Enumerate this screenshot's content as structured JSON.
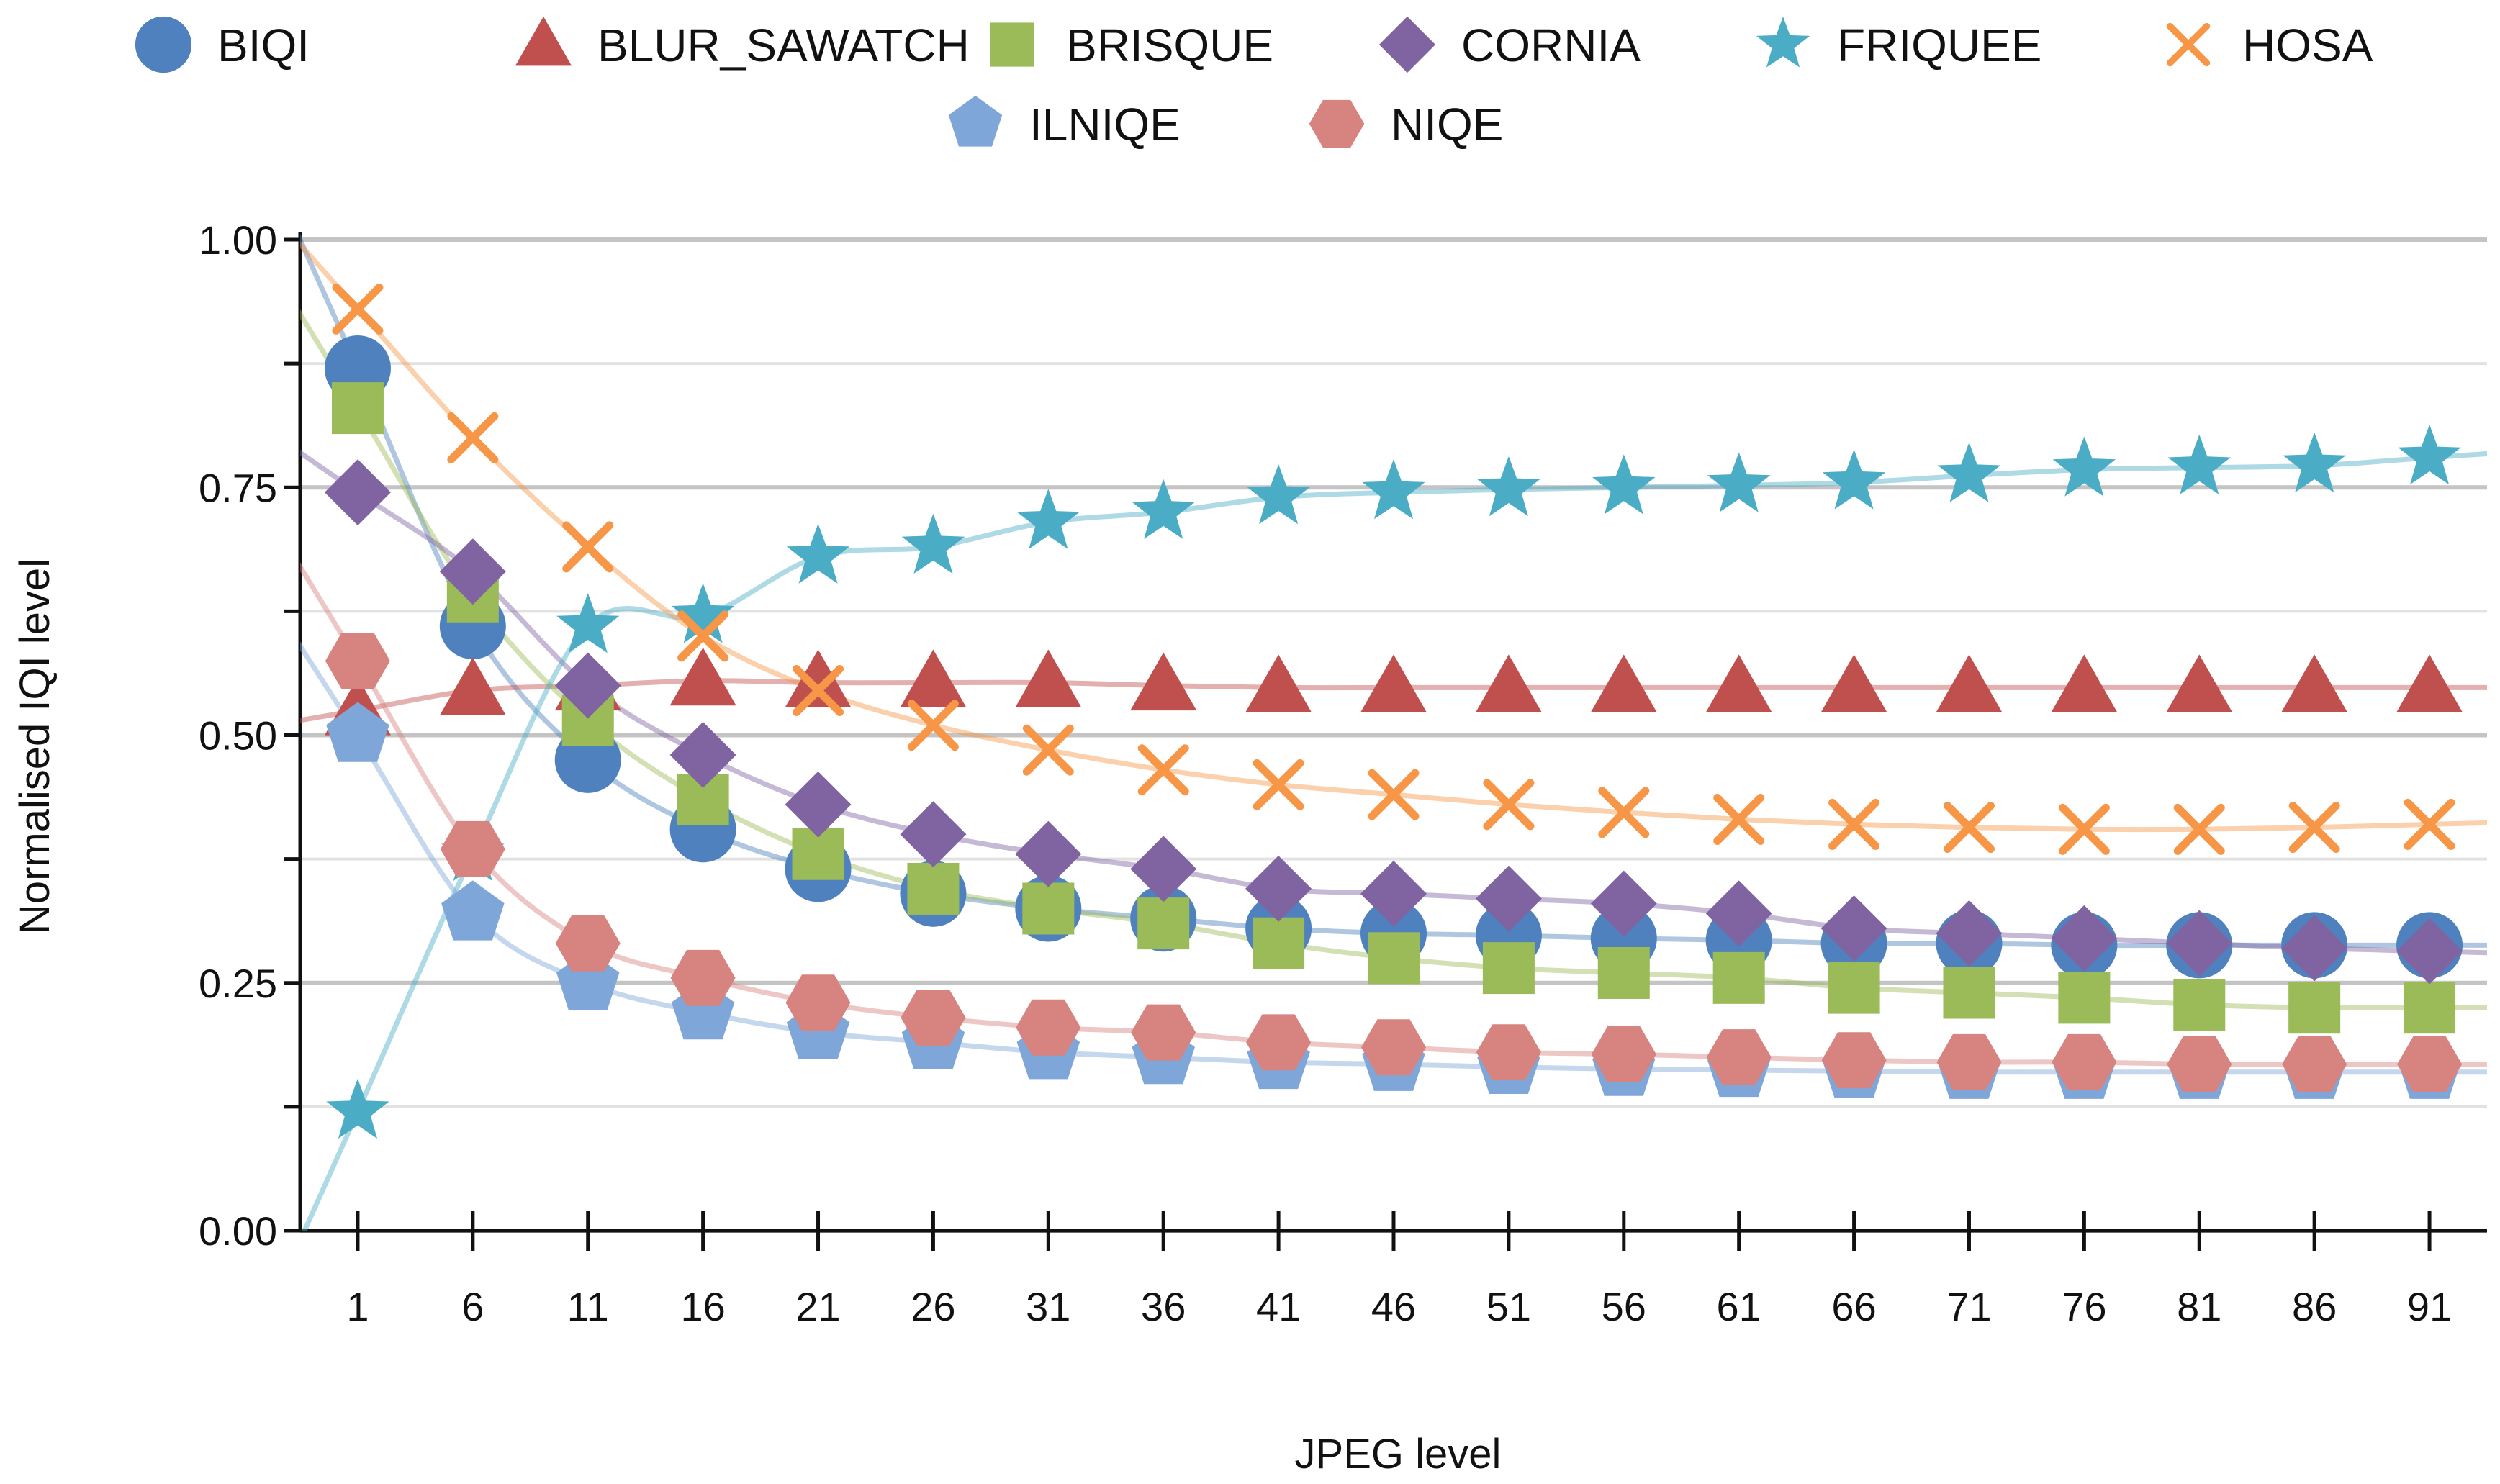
{
  "chart_data": {
    "type": "scatter",
    "xlabel": "JPEG level",
    "ylabel": "Normalised IQI level",
    "x": [
      1,
      6,
      11,
      16,
      21,
      26,
      31,
      36,
      41,
      46,
      51,
      56,
      61,
      66,
      71,
      76,
      81,
      86,
      91
    ],
    "xlim": [
      -1.5,
      93.5
    ],
    "ylim": [
      0,
      1
    ],
    "yticks": [
      "0.00",
      "0.25",
      "0.50",
      "0.75",
      "1.00"
    ],
    "grid": true,
    "legend_position": "top",
    "trend_lines": true,
    "series": [
      {
        "name": "BIQI",
        "marker": "circle",
        "color": "#4e81bd",
        "values": [
          0.87,
          0.61,
          0.475,
          0.405,
          0.365,
          0.34,
          0.325,
          0.315,
          0.305,
          0.3,
          0.298,
          0.295,
          0.293,
          0.29,
          0.29,
          0.288,
          0.288,
          0.288,
          0.288
        ]
      },
      {
        "name": "BLUR_SAWATCH",
        "marker": "triangle",
        "color": "#c0504d",
        "values": [
          0.525,
          0.545,
          0.55,
          0.555,
          0.553,
          0.553,
          0.553,
          0.55,
          0.548,
          0.548,
          0.548,
          0.548,
          0.548,
          0.548,
          0.548,
          0.548,
          0.548,
          0.548,
          0.548
        ]
      },
      {
        "name": "BRISQUE",
        "marker": "square",
        "color": "#9bbb59",
        "values": [
          0.83,
          0.64,
          0.515,
          0.435,
          0.38,
          0.345,
          0.325,
          0.31,
          0.29,
          0.275,
          0.265,
          0.26,
          0.255,
          0.245,
          0.24,
          0.235,
          0.228,
          0.225,
          0.225
        ]
      },
      {
        "name": "CORNIA",
        "marker": "diamond",
        "color": "#8064a2",
        "values": [
          0.745,
          0.665,
          0.55,
          0.48,
          0.43,
          0.4,
          0.38,
          0.365,
          0.345,
          0.34,
          0.335,
          0.33,
          0.32,
          0.305,
          0.3,
          0.295,
          0.29,
          0.285,
          0.282
        ]
      },
      {
        "name": "FRIQUEE",
        "marker": "star",
        "color": "#4bacc6",
        "values": [
          0.12,
          0.38,
          0.61,
          0.62,
          0.68,
          0.69,
          0.715,
          0.725,
          0.74,
          0.745,
          0.748,
          0.75,
          0.752,
          0.755,
          0.762,
          0.768,
          0.77,
          0.772,
          0.78
        ]
      },
      {
        "name": "HOSA",
        "marker": "cross",
        "color": "#f79646",
        "values": [
          0.93,
          0.8,
          0.69,
          0.6,
          0.545,
          0.51,
          0.485,
          0.465,
          0.45,
          0.44,
          0.43,
          0.422,
          0.415,
          0.41,
          0.407,
          0.405,
          0.405,
          0.407,
          0.41
        ]
      },
      {
        "name": "ILNIQE",
        "marker": "pentagon",
        "color": "#7ea6d8",
        "values": [
          0.5,
          0.32,
          0.25,
          0.22,
          0.2,
          0.19,
          0.18,
          0.175,
          0.17,
          0.168,
          0.165,
          0.163,
          0.162,
          0.161,
          0.16,
          0.16,
          0.16,
          0.16,
          0.16
        ]
      },
      {
        "name": "NIQE",
        "marker": "hexagon",
        "color": "#d7837f",
        "values": [
          0.575,
          0.385,
          0.29,
          0.255,
          0.23,
          0.215,
          0.205,
          0.2,
          0.19,
          0.185,
          0.18,
          0.178,
          0.175,
          0.172,
          0.17,
          0.17,
          0.168,
          0.168,
          0.168
        ]
      }
    ]
  }
}
